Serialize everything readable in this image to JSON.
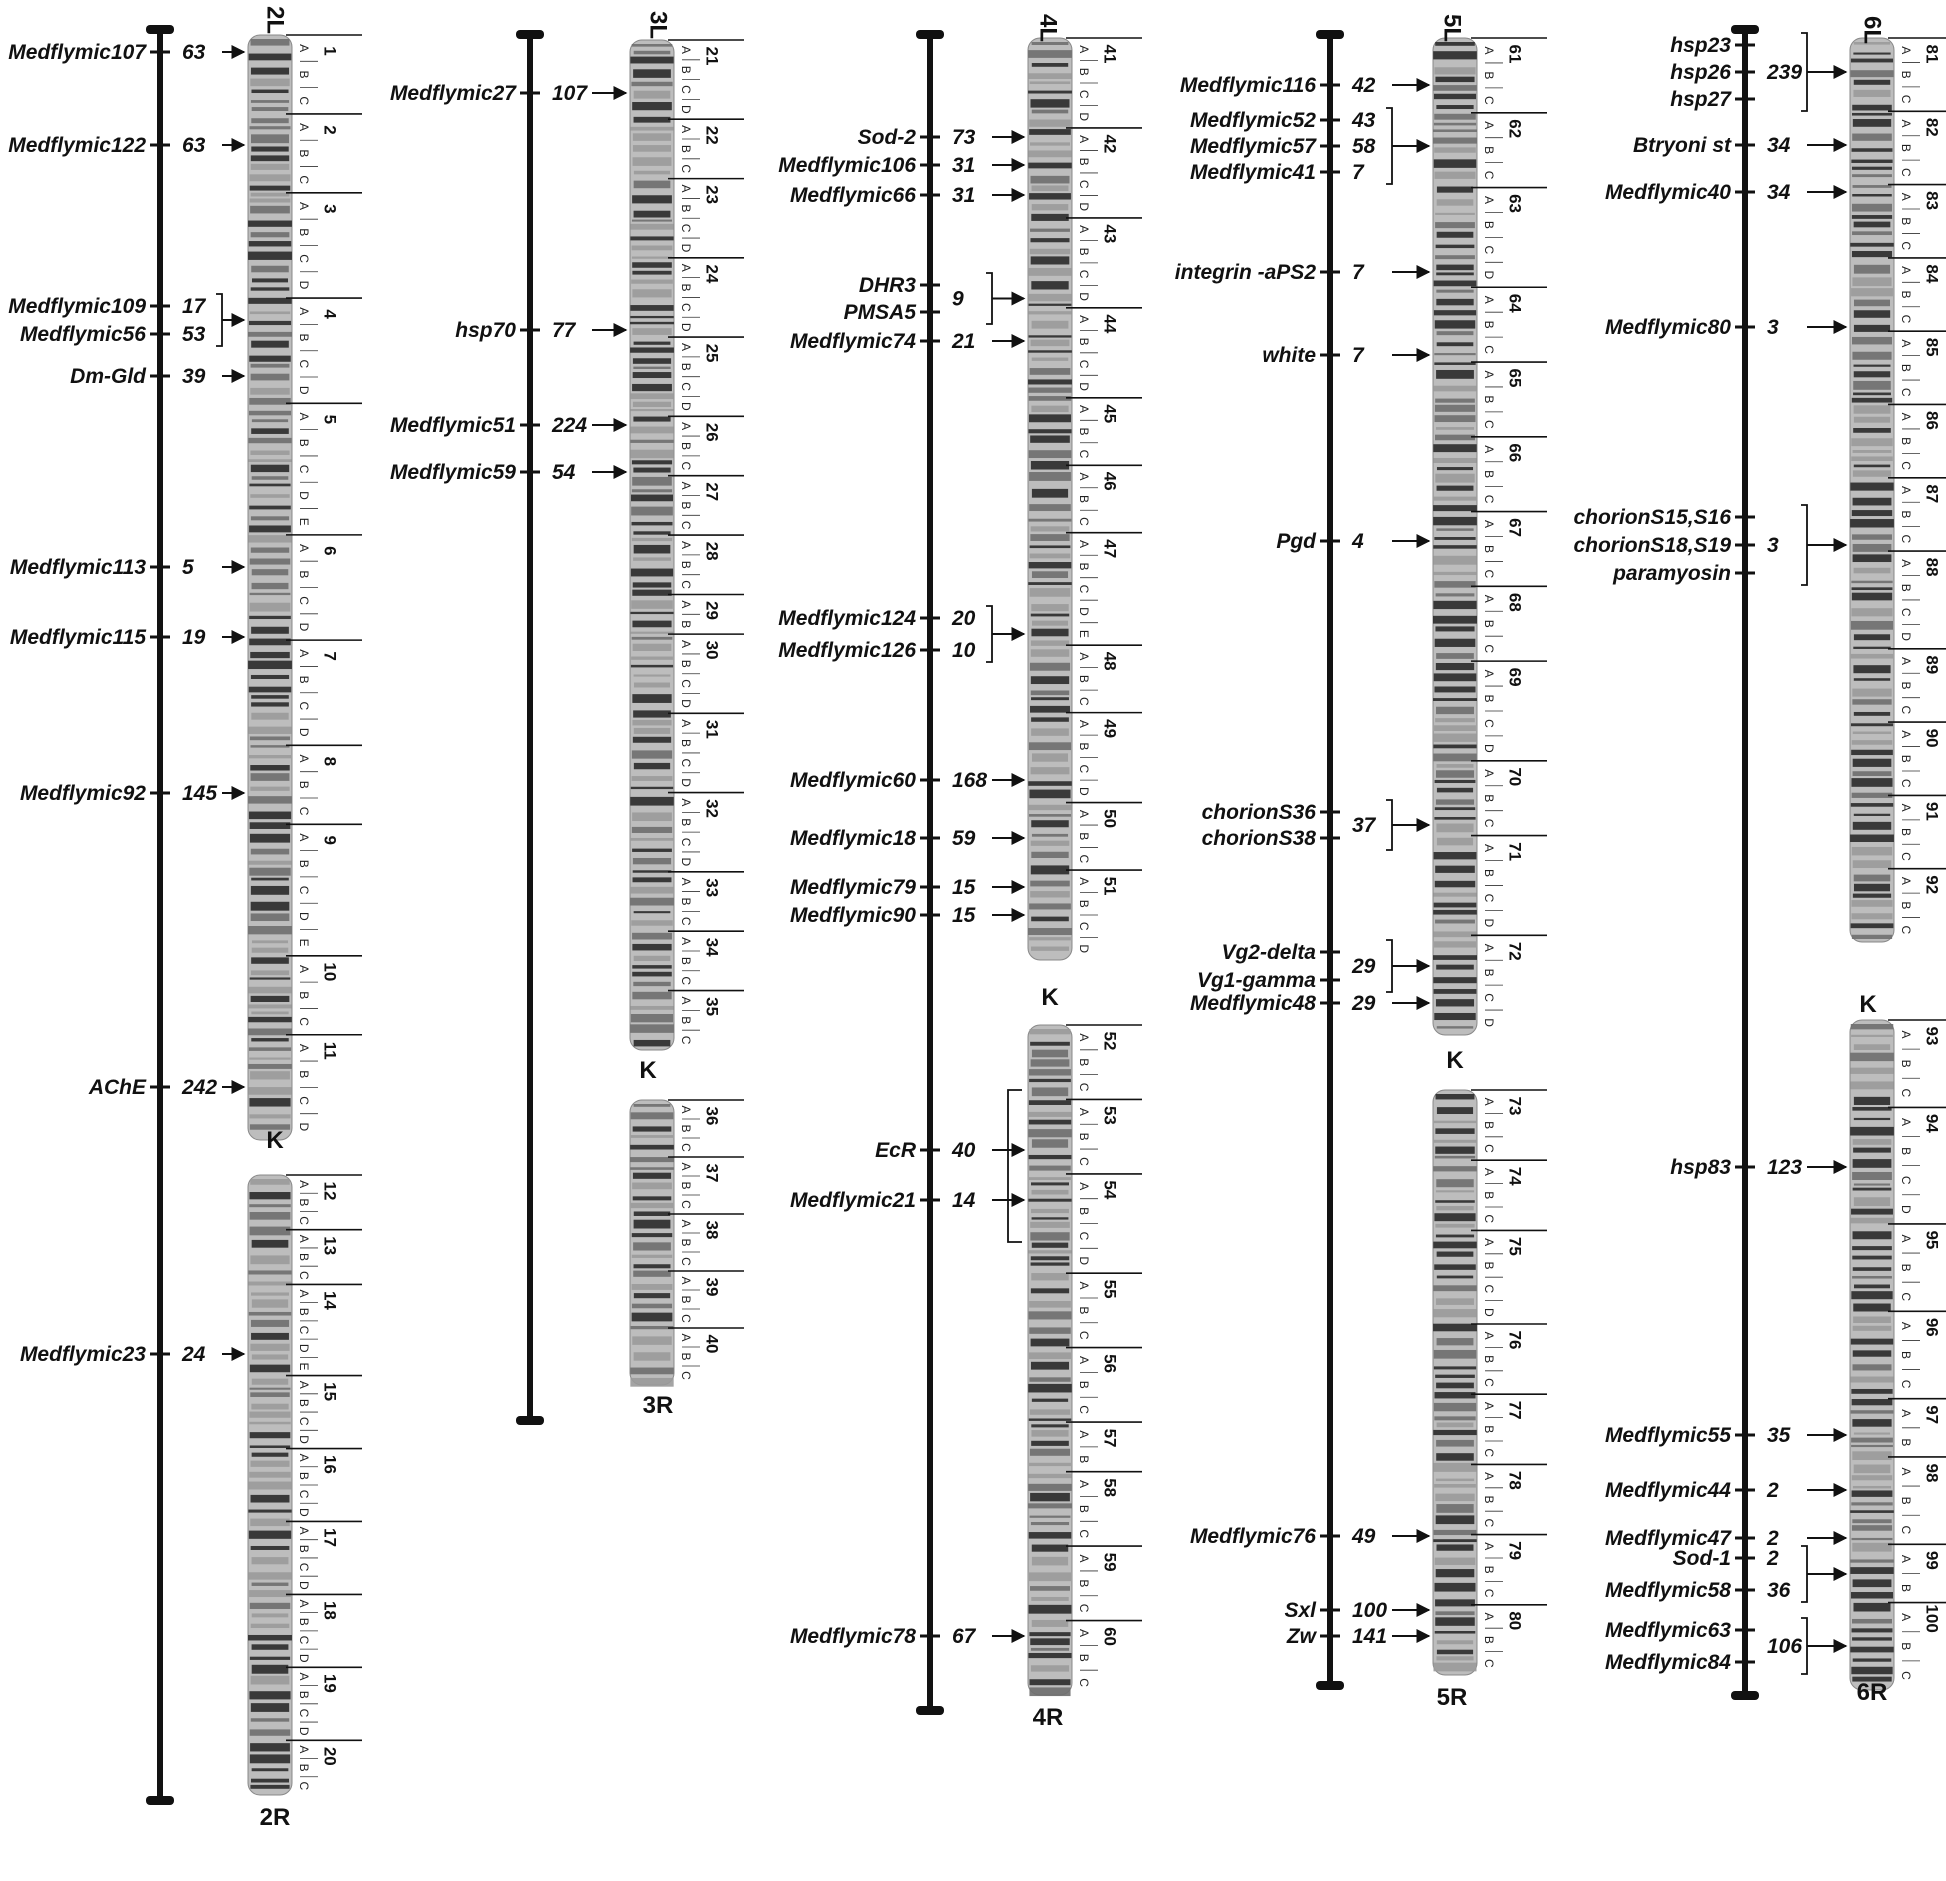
{
  "chromosomes": [
    {
      "id": "2",
      "arm_labels": {
        "left": "2L",
        "right": "2R",
        "centromere": "K"
      },
      "divisions": [
        {
          "num": "1",
          "subs": [
            "A",
            "B",
            "C"
          ]
        },
        {
          "num": "2",
          "subs": [
            "A",
            "B",
            "C"
          ]
        },
        {
          "num": "3",
          "subs": [
            "A",
            "B",
            "C",
            "D"
          ]
        },
        {
          "num": "4",
          "subs": [
            "A",
            "B",
            "C",
            "D"
          ]
        },
        {
          "num": "5",
          "subs": [
            "A",
            "B",
            "C",
            "D",
            "E"
          ]
        },
        {
          "num": "6",
          "subs": [
            "A",
            "B",
            "C",
            "D"
          ]
        },
        {
          "num": "7",
          "subs": [
            "A",
            "B",
            "C",
            "D"
          ]
        },
        {
          "num": "8",
          "subs": [
            "A",
            "B",
            "C"
          ]
        },
        {
          "num": "9",
          "subs": [
            "A",
            "B",
            "C",
            "D",
            "E"
          ]
        },
        {
          "num": "10",
          "subs": [
            "A",
            "B",
            "C"
          ]
        },
        {
          "num": "11",
          "subs": [
            "A",
            "B",
            "C",
            "D"
          ]
        },
        {
          "num": "12",
          "subs": [
            "A",
            "B",
            "C"
          ]
        },
        {
          "num": "13",
          "subs": [
            "A",
            "B",
            "C"
          ]
        },
        {
          "num": "14",
          "subs": [
            "A",
            "B",
            "C",
            "D",
            "E"
          ]
        },
        {
          "num": "15",
          "subs": [
            "A",
            "B",
            "C",
            "D"
          ]
        },
        {
          "num": "16",
          "subs": [
            "A",
            "B",
            "C",
            "D"
          ]
        },
        {
          "num": "17",
          "subs": [
            "A",
            "B",
            "C",
            "D"
          ]
        },
        {
          "num": "18",
          "subs": [
            "A",
            "B",
            "C",
            "D"
          ]
        },
        {
          "num": "19",
          "subs": [
            "A",
            "B",
            "C",
            "D"
          ]
        },
        {
          "num": "20",
          "subs": [
            "A",
            "B",
            "C"
          ]
        }
      ],
      "markers": [
        {
          "names": [
            "Medflymic107"
          ],
          "count": "63"
        },
        {
          "names": [
            "Medflymic122"
          ],
          "count": "63"
        },
        {
          "names": [
            "Medflymic109",
            "Medflymic56"
          ],
          "counts": [
            "17",
            "53"
          ]
        },
        {
          "names": [
            "Dm-Gld"
          ],
          "count": "39"
        },
        {
          "names": [
            "Medflymic113"
          ],
          "count": "5"
        },
        {
          "names": [
            "Medflymic115"
          ],
          "count": "19"
        },
        {
          "names": [
            "Medflymic92"
          ],
          "count": "145"
        },
        {
          "names": [
            "AChE"
          ],
          "count": "242"
        },
        {
          "names": [
            "Medflymic23"
          ],
          "count": "24"
        }
      ]
    },
    {
      "id": "3",
      "arm_labels": {
        "left": "3L",
        "right": "3R",
        "centromere": "K"
      },
      "divisions": [
        {
          "num": "21",
          "subs": [
            "A",
            "B",
            "C",
            "D"
          ]
        },
        {
          "num": "22",
          "subs": [
            "A",
            "B",
            "C"
          ]
        },
        {
          "num": "23",
          "subs": [
            "A",
            "B",
            "C",
            "D"
          ]
        },
        {
          "num": "24",
          "subs": [
            "A",
            "B",
            "C",
            "D"
          ]
        },
        {
          "num": "25",
          "subs": [
            "A",
            "B",
            "C",
            "D"
          ]
        },
        {
          "num": "26",
          "subs": [
            "A",
            "B",
            "C"
          ]
        },
        {
          "num": "27",
          "subs": [
            "A",
            "B",
            "C"
          ]
        },
        {
          "num": "28",
          "subs": [
            "A",
            "B",
            "C"
          ]
        },
        {
          "num": "29",
          "subs": [
            "A",
            "B"
          ]
        },
        {
          "num": "30",
          "subs": [
            "A",
            "B",
            "C",
            "D"
          ]
        },
        {
          "num": "31",
          "subs": [
            "A",
            "B",
            "C",
            "D"
          ]
        },
        {
          "num": "32",
          "subs": [
            "A",
            "B",
            "C",
            "D"
          ]
        },
        {
          "num": "33",
          "subs": [
            "A",
            "B",
            "C"
          ]
        },
        {
          "num": "34",
          "subs": [
            "A",
            "B",
            "C"
          ]
        },
        {
          "num": "35",
          "subs": [
            "A",
            "B",
            "C"
          ]
        },
        {
          "num": "36",
          "subs": [
            "A",
            "B",
            "C"
          ]
        },
        {
          "num": "37",
          "subs": [
            "A",
            "B",
            "C"
          ]
        },
        {
          "num": "38",
          "subs": [
            "A",
            "B",
            "C"
          ]
        },
        {
          "num": "39",
          "subs": [
            "A",
            "B",
            "C"
          ]
        },
        {
          "num": "40",
          "subs": [
            "A",
            "B",
            "C"
          ]
        }
      ],
      "markers": [
        {
          "names": [
            "Medflymic27"
          ],
          "count": "107"
        },
        {
          "names": [
            "hsp70"
          ],
          "count": "77"
        },
        {
          "names": [
            "Medflymic51"
          ],
          "count": "224"
        },
        {
          "names": [
            "Medflymic59"
          ],
          "count": "54"
        }
      ]
    },
    {
      "id": "4",
      "arm_labels": {
        "left": "4L",
        "right": "4R",
        "centromere": "K"
      },
      "divisions": [
        {
          "num": "41",
          "subs": [
            "A",
            "B",
            "C",
            "D"
          ]
        },
        {
          "num": "42",
          "subs": [
            "A",
            "B",
            "C",
            "D"
          ]
        },
        {
          "num": "43",
          "subs": [
            "A",
            "B",
            "C",
            "D"
          ]
        },
        {
          "num": "44",
          "subs": [
            "A",
            "B",
            "C",
            "D"
          ]
        },
        {
          "num": "45",
          "subs": [
            "A",
            "B",
            "C"
          ]
        },
        {
          "num": "46",
          "subs": [
            "A",
            "B",
            "C"
          ]
        },
        {
          "num": "47",
          "subs": [
            "A",
            "B",
            "C",
            "D",
            "E"
          ]
        },
        {
          "num": "48",
          "subs": [
            "A",
            "B",
            "C"
          ]
        },
        {
          "num": "49",
          "subs": [
            "A",
            "B",
            "C",
            "D"
          ]
        },
        {
          "num": "50",
          "subs": [
            "A",
            "B",
            "C"
          ]
        },
        {
          "num": "51",
          "subs": [
            "A",
            "B",
            "C",
            "D"
          ]
        },
        {
          "num": "52",
          "subs": [
            "A",
            "B",
            "C"
          ]
        },
        {
          "num": "53",
          "subs": [
            "A",
            "B",
            "C"
          ]
        },
        {
          "num": "54",
          "subs": [
            "A",
            "B",
            "C",
            "D"
          ]
        },
        {
          "num": "55",
          "subs": [
            "A",
            "B",
            "C"
          ]
        },
        {
          "num": "56",
          "subs": [
            "A",
            "B",
            "C"
          ]
        },
        {
          "num": "57",
          "subs": [
            "A",
            "B"
          ]
        },
        {
          "num": "58",
          "subs": [
            "A",
            "B",
            "C"
          ]
        },
        {
          "num": "59",
          "subs": [
            "A",
            "B",
            "C"
          ]
        },
        {
          "num": "60",
          "subs": [
            "A",
            "B",
            "C"
          ]
        }
      ],
      "markers": [
        {
          "names": [
            "Sod-2"
          ],
          "count": "73"
        },
        {
          "names": [
            "Medflymic106"
          ],
          "count": "31"
        },
        {
          "names": [
            "Medflymic66"
          ],
          "count": "31"
        },
        {
          "names": [
            "DHR3",
            "PMSA5"
          ],
          "count": "9"
        },
        {
          "names": [
            "Medflymic74"
          ],
          "count": "21"
        },
        {
          "names": [
            "Medflymic124",
            "Medflymic126"
          ],
          "counts": [
            "20",
            "10"
          ]
        },
        {
          "names": [
            "Medflymic60"
          ],
          "count": "168"
        },
        {
          "names": [
            "Medflymic18"
          ],
          "count": "59"
        },
        {
          "names": [
            "Medflymic79"
          ],
          "count": "15"
        },
        {
          "names": [
            "Medflymic90"
          ],
          "count": "15"
        },
        {
          "names": [
            "EcR"
          ],
          "count": "40"
        },
        {
          "names": [
            "Medflymic21"
          ],
          "count": "14"
        },
        {
          "names": [
            "Medflymic78"
          ],
          "count": "67"
        }
      ]
    },
    {
      "id": "5",
      "arm_labels": {
        "left": "5L",
        "right": "5R",
        "centromere": "K"
      },
      "divisions": [
        {
          "num": "61",
          "subs": [
            "A",
            "B",
            "C"
          ]
        },
        {
          "num": "62",
          "subs": [
            "A",
            "B",
            "C"
          ]
        },
        {
          "num": "63",
          "subs": [
            "A",
            "B",
            "C",
            "D"
          ]
        },
        {
          "num": "64",
          "subs": [
            "A",
            "B",
            "C"
          ]
        },
        {
          "num": "65",
          "subs": [
            "A",
            "B",
            "C"
          ]
        },
        {
          "num": "66",
          "subs": [
            "A",
            "B",
            "C"
          ]
        },
        {
          "num": "67",
          "subs": [
            "A",
            "B",
            "C"
          ]
        },
        {
          "num": "68",
          "subs": [
            "A",
            "B",
            "C"
          ]
        },
        {
          "num": "69",
          "subs": [
            "A",
            "B",
            "C",
            "D"
          ]
        },
        {
          "num": "70",
          "subs": [
            "A",
            "B",
            "C"
          ]
        },
        {
          "num": "71",
          "subs": [
            "A",
            "B",
            "C",
            "D"
          ]
        },
        {
          "num": "72",
          "subs": [
            "A",
            "B",
            "C",
            "D"
          ]
        },
        {
          "num": "73",
          "subs": [
            "A",
            "B",
            "C"
          ]
        },
        {
          "num": "74",
          "subs": [
            "A",
            "B",
            "C"
          ]
        },
        {
          "num": "75",
          "subs": [
            "A",
            "B",
            "C",
            "D"
          ]
        },
        {
          "num": "76",
          "subs": [
            "A",
            "B",
            "C"
          ]
        },
        {
          "num": "77",
          "subs": [
            "A",
            "B",
            "C"
          ]
        },
        {
          "num": "78",
          "subs": [
            "A",
            "B",
            "C"
          ]
        },
        {
          "num": "79",
          "subs": [
            "A",
            "B",
            "C"
          ]
        },
        {
          "num": "80",
          "subs": [
            "A",
            "B",
            "C"
          ]
        }
      ],
      "markers": [
        {
          "names": [
            "Medflymic116"
          ],
          "count": "42"
        },
        {
          "names": [
            "Medflymic52",
            "Medflymic57",
            "Medflymic41"
          ],
          "counts": [
            "43",
            "58",
            "7"
          ]
        },
        {
          "names": [
            "integrin -aPS2"
          ],
          "count": "7"
        },
        {
          "names": [
            "white"
          ],
          "count": "7"
        },
        {
          "names": [
            "Pgd"
          ],
          "count": "4"
        },
        {
          "names": [
            "chorionS36",
            "chorionS38"
          ],
          "count": "37"
        },
        {
          "names": [
            "Vg2-delta",
            "Vg1-gamma"
          ],
          "count": "29"
        },
        {
          "names": [
            "Medflymic48"
          ],
          "count": "29"
        },
        {
          "names": [
            "Medflymic76"
          ],
          "count": "49"
        },
        {
          "names": [
            "Sxl"
          ],
          "count": "100"
        },
        {
          "names": [
            "Zw"
          ],
          "count": "141"
        }
      ]
    },
    {
      "id": "6",
      "arm_labels": {
        "left": "6L",
        "right": "6R",
        "centromere": "K"
      },
      "divisions": [
        {
          "num": "81",
          "subs": [
            "A",
            "B",
            "C"
          ]
        },
        {
          "num": "82",
          "subs": [
            "A",
            "B",
            "C"
          ]
        },
        {
          "num": "83",
          "subs": [
            "A",
            "B",
            "C"
          ]
        },
        {
          "num": "84",
          "subs": [
            "A",
            "B",
            "C"
          ]
        },
        {
          "num": "85",
          "subs": [
            "A",
            "B",
            "C"
          ]
        },
        {
          "num": "86",
          "subs": [
            "A",
            "B",
            "C"
          ]
        },
        {
          "num": "87",
          "subs": [
            "A",
            "B",
            "C"
          ]
        },
        {
          "num": "88",
          "subs": [
            "A",
            "B",
            "C",
            "D"
          ]
        },
        {
          "num": "89",
          "subs": [
            "A",
            "B",
            "C"
          ]
        },
        {
          "num": "90",
          "subs": [
            "A",
            "B",
            "C"
          ]
        },
        {
          "num": "91",
          "subs": [
            "A",
            "B",
            "C"
          ]
        },
        {
          "num": "92",
          "subs": [
            "A",
            "B",
            "C"
          ]
        },
        {
          "num": "93",
          "subs": [
            "A",
            "B",
            "C"
          ]
        },
        {
          "num": "94",
          "subs": [
            "A",
            "B",
            "C",
            "D"
          ]
        },
        {
          "num": "95",
          "subs": [
            "A",
            "B",
            "C"
          ]
        },
        {
          "num": "96",
          "subs": [
            "A",
            "B",
            "C"
          ]
        },
        {
          "num": "97",
          "subs": [
            "A",
            "B"
          ]
        },
        {
          "num": "98",
          "subs": [
            "A",
            "B",
            "C"
          ]
        },
        {
          "num": "99",
          "subs": [
            "A",
            "B"
          ]
        },
        {
          "num": "100",
          "subs": [
            "A",
            "B",
            "C"
          ]
        }
      ],
      "markers": [
        {
          "names": [
            "hsp23",
            "hsp26",
            "hsp27"
          ],
          "count": "239"
        },
        {
          "names": [
            "Btryoni  st"
          ],
          "count": "34"
        },
        {
          "names": [
            "Medflymic40"
          ],
          "count": "34"
        },
        {
          "names": [
            "Medflymic80"
          ],
          "count": "3"
        },
        {
          "names": [
            "chorionS15,S16",
            "chorionS18,S19",
            "paramyosin"
          ],
          "count": "3"
        },
        {
          "names": [
            "hsp83"
          ],
          "count": "123"
        },
        {
          "names": [
            "Medflymic55"
          ],
          "count": "35"
        },
        {
          "names": [
            "Medflymic44"
          ],
          "count": "2"
        },
        {
          "names": [
            "Medflymic47"
          ],
          "count": "2"
        },
        {
          "names": [
            "Sod-1",
            "Medflymic58"
          ],
          "counts": [
            "2",
            "36"
          ]
        },
        {
          "names": [
            "Medflymic63",
            "Medflymic84"
          ],
          "count": "106"
        }
      ]
    }
  ],
  "colors": {
    "ink": "#111111",
    "band_dark": "#2a2a2a",
    "band_light": "#bdbdbd",
    "background": "#ffffff"
  }
}
